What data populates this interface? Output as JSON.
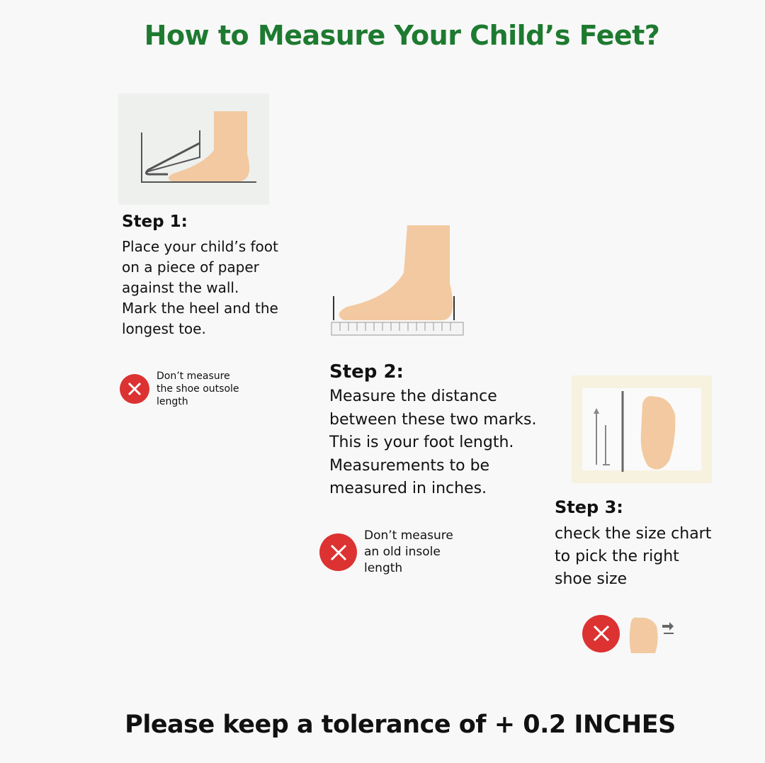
{
  "title": "How to Measure Your Child’s Feet?",
  "colors": {
    "title": "#1e7a30",
    "skin": "#f2c9a0",
    "warning_red": "#dc3232"
  },
  "steps": [
    {
      "heading": "Step 1:",
      "text": "Place your child’s foot\non a piece of paper\nagainst the wall.\nMark the heel and the\nlongest toe.",
      "warning": "Don’t measure\nthe shoe outsole\nlength",
      "icon": "foot-against-wall-icon"
    },
    {
      "heading": "Step 2:",
      "text": "Measure the distance\nbetween these two marks.\nThis is your foot length.\nMeasurements to be\nmeasured in inches.",
      "warning": "Don’t measure\nan old insole\nlength",
      "icon": "foot-on-ruler-icon"
    },
    {
      "heading": "Step 3:",
      "text": "check the size chart\nto pick the right\nshoe size",
      "icon": "foot-size-chart-icon",
      "warning_icon": "foot-with-arrows-icon"
    }
  ],
  "footer": "Please keep a tolerance of + 0.2 INCHES"
}
